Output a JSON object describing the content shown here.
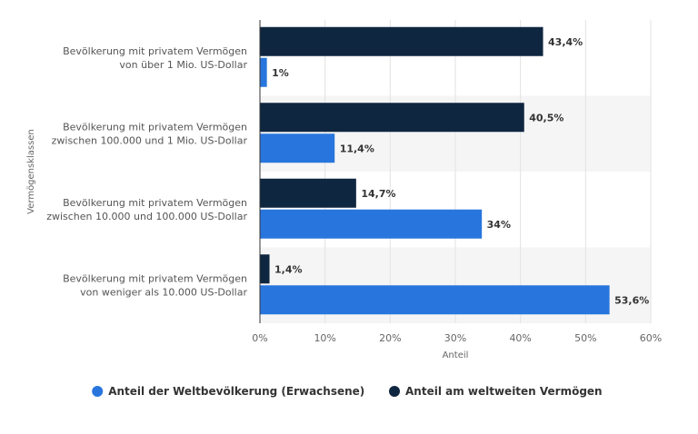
{
  "chart_data": {
    "type": "bar",
    "orientation": "horizontal",
    "categories": [
      [
        "Bevölkerung mit privatem Vermögen",
        "von über 1 Mio. US-Dollar"
      ],
      [
        "Bevölkerung mit privatem Vermögen",
        "zwischen 100.000 und 1 Mio. US-Dollar"
      ],
      [
        "Bevölkerung mit privatem Vermögen",
        "zwischen 10.000 und 100.000 US-Dollar"
      ],
      [
        "Bevölkerung mit privatem Vermögen",
        "von weniger als 10.000 US-Dollar"
      ]
    ],
    "series": [
      {
        "name": "Anteil am weltweiten Vermögen",
        "color": "#0f2640",
        "values": [
          43.4,
          40.5,
          14.7,
          1.4
        ],
        "labels": [
          "43,4%",
          "40,5%",
          "14,7%",
          "1,4%"
        ]
      },
      {
        "name": "Anteil der Weltbevölkerung (Erwachsene)",
        "color": "#2876dd",
        "values": [
          1,
          11.4,
          34,
          53.6
        ],
        "labels": [
          "1%",
          "11,4%",
          "34%",
          "53,6%"
        ]
      }
    ],
    "xlabel": "Anteil",
    "ylabel": "Vermögensklassen",
    "xlim": [
      0,
      60
    ],
    "xticks": [
      0,
      10,
      20,
      30,
      40,
      50,
      60
    ],
    "xtick_labels": [
      "0%",
      "10%",
      "20%",
      "30%",
      "40%",
      "50%",
      "60%"
    ],
    "grid": true,
    "legend": {
      "position": "bottom",
      "items": [
        {
          "label": "Anteil der Weltbevölkerung (Erwachsene)",
          "color": "#2876dd"
        },
        {
          "label": "Anteil am weltweiten Vermögen",
          "color": "#0f2640"
        }
      ]
    }
  }
}
